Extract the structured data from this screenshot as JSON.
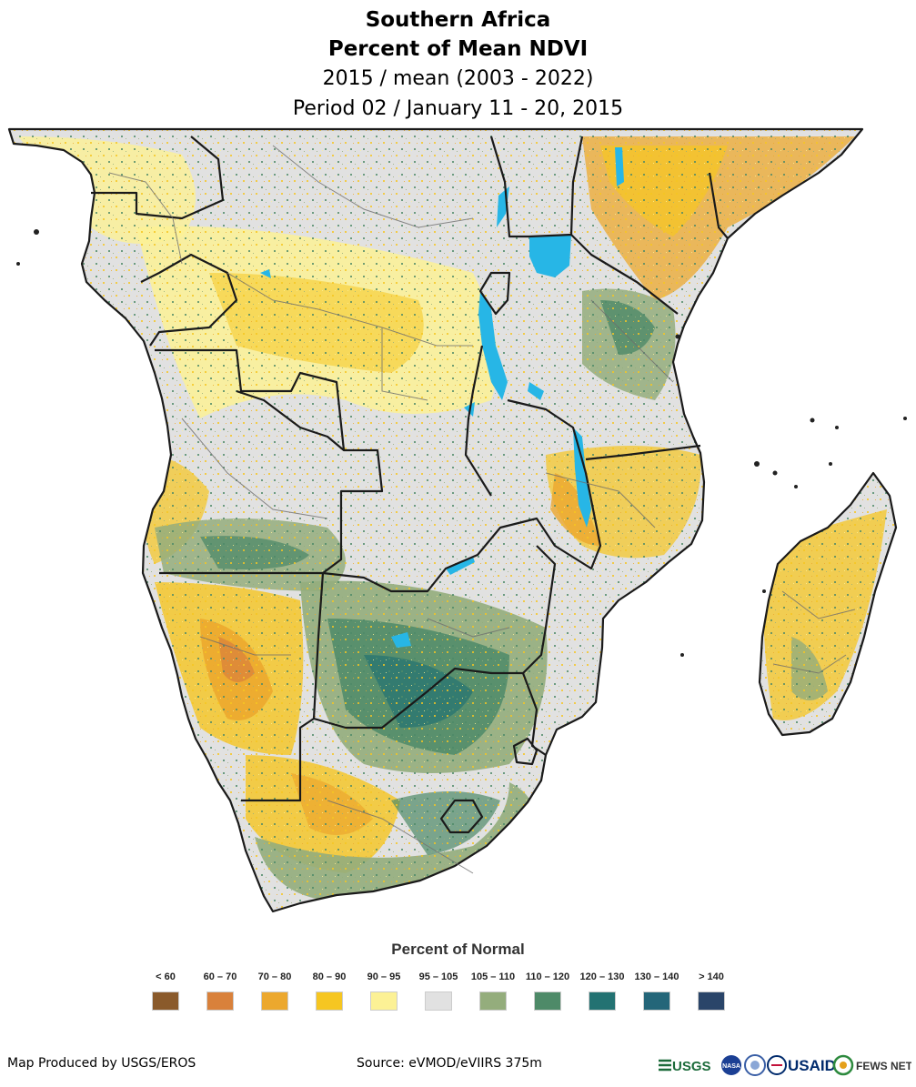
{
  "title": {
    "line1": "Southern Africa",
    "line2": "Percent of Mean NDVI",
    "line3": "2015 / mean (2003 - 2022)",
    "line4": "Period 02 / January 11 - 20, 2015"
  },
  "legend": {
    "title": "Percent of Normal",
    "classes": [
      {
        "label": "< 60",
        "color": "#8a5a2b"
      },
      {
        "label": "60 – 70",
        "color": "#d9813b"
      },
      {
        "label": "70 – 80",
        "color": "#eca82e"
      },
      {
        "label": "80 – 90",
        "color": "#f6c621"
      },
      {
        "label": "90 – 95",
        "color": "#fcf195"
      },
      {
        "label": "95 – 105",
        "color": "#e1e1e1"
      },
      {
        "label": "105 – 110",
        "color": "#94ad7c"
      },
      {
        "label": "110 – 120",
        "color": "#4e8a68"
      },
      {
        "label": "120 – 130",
        "color": "#237272"
      },
      {
        "label": "130 – 140",
        "color": "#246679"
      },
      {
        "label": "> 140",
        "color": "#2a4569"
      }
    ]
  },
  "footer": {
    "producer": "Map Produced by USGS/EROS",
    "source": "Source: eVMOD/eVIIRS 375m"
  },
  "logos": {
    "usgs": "USGS",
    "nasa": "NASA",
    "usaid": "USAID",
    "fewsnet": "FEWS NET"
  },
  "map_colors": {
    "water": "#27b6e6",
    "border_country": "#1a1a1a",
    "border_admin": "#6e6e6e"
  }
}
